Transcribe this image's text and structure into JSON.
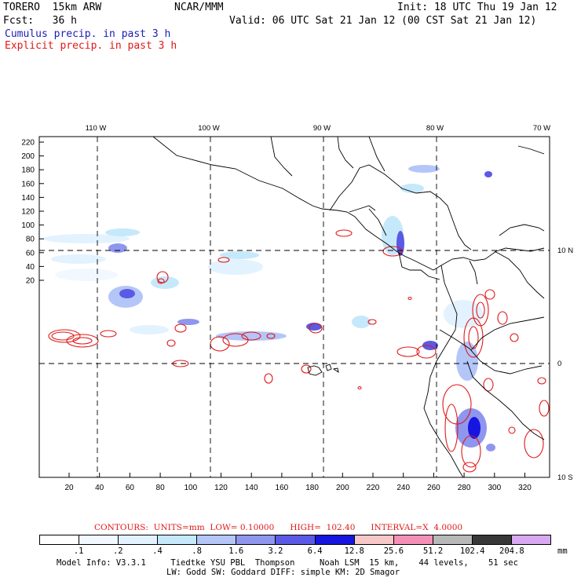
{
  "header": {
    "model_name": "TORERO  15km ARW",
    "org": "NCAR/MMM",
    "init": "Init: 18 UTC Thu 19 Jan 12",
    "fcst": "Fcst:   36 h",
    "valid": "Valid: 06 UTC Sat 21 Jan 12 (00 CST Sat 21 Jan 12)",
    "field1": "Cumulus precip. in past 3 h",
    "field2": "Explicit precip. in past 3 h"
  },
  "map": {
    "top_lon_labels": [
      "110 W",
      "100 W",
      "90 W",
      "80 W",
      "70 W"
    ],
    "right_lat_labels": [
      "10 N",
      "0",
      "10 S"
    ],
    "y_ticks": [
      "220",
      "200",
      "180",
      "160",
      "140",
      "120",
      "100",
      "80",
      "60",
      "40",
      "20"
    ],
    "x_ticks": [
      "20",
      "40",
      "60",
      "80",
      "100",
      "120",
      "140",
      "160",
      "180",
      "200",
      "220",
      "240",
      "260",
      "280",
      "300",
      "320"
    ]
  },
  "legend": {
    "contours_caption": "CONTOURS:  UNITS=mm  LOW= 0.10000      HIGH=  102.40      INTERVAL=X  4.0000",
    "colorbar_labels": [
      ".1",
      ".2",
      ".4",
      ".8",
      "1.6",
      "3.2",
      "6.4",
      "12.8",
      "25.6",
      "51.2",
      "102.4",
      "204.8"
    ],
    "units": "mm",
    "colorbar_colors": [
      "#ffffff",
      "#f2f8ff",
      "#e2f2ff",
      "#c6e8fb",
      "#b4c6f8",
      "#8f96ee",
      "#5a5ae6",
      "#1616e0",
      "#f8c8c8",
      "#f490b8",
      "#b8b8b8",
      "#383838",
      "#d8a8f0"
    ]
  },
  "footer": {
    "line1": "Model Info: V3.3.1     Tiedtke YSU PBL  Thompson     Noah LSM  15 km,    44 levels,    51 sec",
    "line2": "LW: Godd SW: Goddard DIFF: simple KM: 2D Smagor"
  }
}
